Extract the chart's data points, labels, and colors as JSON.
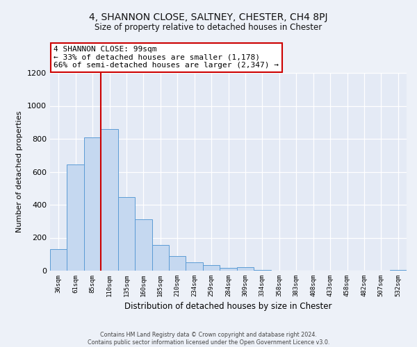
{
  "title": "4, SHANNON CLOSE, SALTNEY, CHESTER, CH4 8PJ",
  "subtitle": "Size of property relative to detached houses in Chester",
  "xlabel": "Distribution of detached houses by size in Chester",
  "ylabel": "Number of detached properties",
  "bar_labels": [
    "36sqm",
    "61sqm",
    "85sqm",
    "110sqm",
    "135sqm",
    "160sqm",
    "185sqm",
    "210sqm",
    "234sqm",
    "259sqm",
    "284sqm",
    "309sqm",
    "334sqm",
    "358sqm",
    "383sqm",
    "408sqm",
    "433sqm",
    "458sqm",
    "482sqm",
    "507sqm",
    "532sqm"
  ],
  "bar_values": [
    130,
    645,
    810,
    860,
    445,
    310,
    155,
    90,
    50,
    35,
    15,
    20,
    5,
    0,
    0,
    0,
    0,
    0,
    0,
    0,
    5
  ],
  "bar_color": "#c5d8f0",
  "bar_edge_color": "#5b9bd5",
  "vline_color": "#cc0000",
  "annotation_line1": "4 SHANNON CLOSE: 99sqm",
  "annotation_line2": "← 33% of detached houses are smaller (1,178)",
  "annotation_line3": "66% of semi-detached houses are larger (2,347) →",
  "annotation_box_color": "#ffffff",
  "annotation_box_edge": "#cc0000",
  "ylim": [
    0,
    1200
  ],
  "yticks": [
    0,
    200,
    400,
    600,
    800,
    1000,
    1200
  ],
  "footer_text": "Contains HM Land Registry data © Crown copyright and database right 2024.\nContains public sector information licensed under the Open Government Licence v3.0.",
  "bg_color": "#edf1f8",
  "plot_bg_color": "#e4eaf5"
}
